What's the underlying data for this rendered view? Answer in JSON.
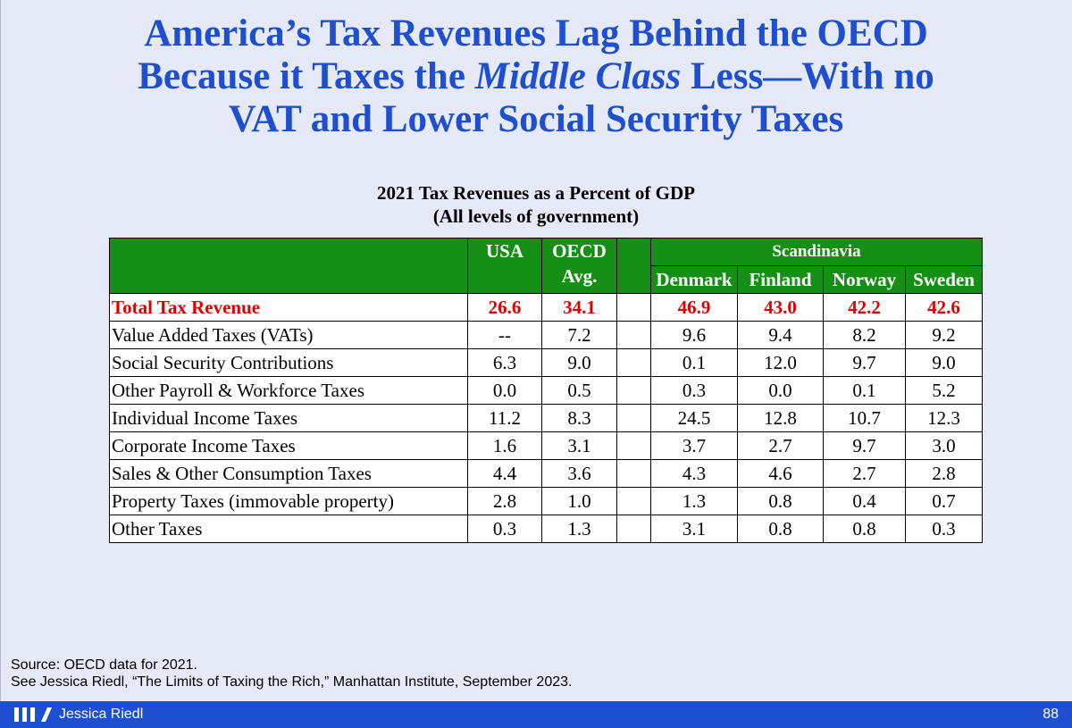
{
  "title": {
    "line1": "America’s Tax Revenues Lag Behind the OECD",
    "line2_pre": "Because it Taxes the ",
    "line2_em": "Middle Class",
    "line2_post": " Less—With no",
    "line3": "VAT and Lower Social Security Taxes"
  },
  "table": {
    "title_line1": "2021 Tax Revenues as a Percent of GDP",
    "title_line2": "(All levels of government)",
    "header": {
      "usa": "USA",
      "oecd_line1": "OECD",
      "oecd_line2": "Avg.",
      "group": "Scandinavia",
      "denmark": "Denmark",
      "finland": "Finland",
      "norway": "Norway",
      "sweden": "Sweden"
    },
    "rows": [
      {
        "label": "Total Tax Revenue",
        "usa": "26.6",
        "oecd": "34.1",
        "denmark": "46.9",
        "finland": "43.0",
        "norway": "42.2",
        "sweden": "42.6"
      },
      {
        "label": "Value Added Taxes (VATs)",
        "usa": "--",
        "oecd": "7.2",
        "denmark": "9.6",
        "finland": "9.4",
        "norway": "8.2",
        "sweden": "9.2"
      },
      {
        "label": "Social Security Contributions",
        "usa": "6.3",
        "oecd": "9.0",
        "denmark": "0.1",
        "finland": "12.0",
        "norway": "9.7",
        "sweden": "9.0"
      },
      {
        "label": "Other Payroll & Workforce Taxes",
        "usa": "0.0",
        "oecd": "0.5",
        "denmark": "0.3",
        "finland": "0.0",
        "norway": "0.1",
        "sweden": "5.2"
      },
      {
        "label": "Individual Income Taxes",
        "usa": "11.2",
        "oecd": "8.3",
        "denmark": "24.5",
        "finland": "12.8",
        "norway": "10.7",
        "sweden": "12.3"
      },
      {
        "label": "Corporate Income Taxes",
        "usa": "1.6",
        "oecd": "3.1",
        "denmark": "3.7",
        "finland": "2.7",
        "norway": "9.7",
        "sweden": "3.0"
      },
      {
        "label": "Sales & Other Consumption Taxes",
        "usa": "4.4",
        "oecd": "3.6",
        "denmark": "4.3",
        "finland": "4.6",
        "norway": "2.7",
        "sweden": "2.8"
      },
      {
        "label": "Property Taxes (immovable property)",
        "usa": "2.8",
        "oecd": "1.0",
        "denmark": "1.3",
        "finland": "0.8",
        "norway": "0.4",
        "sweden": "0.7"
      },
      {
        "label": "Other Taxes",
        "usa": "0.3",
        "oecd": "1.3",
        "denmark": "3.1",
        "finland": "0.8",
        "norway": "0.8",
        "sweden": "0.3"
      }
    ]
  },
  "source": {
    "line1": "Source: OECD data for 2021.",
    "line2": "See Jessica Riedl, “The Limits of Taxing the Rich,” Manhattan Institute, September 2023."
  },
  "footer": {
    "author": "Jessica Riedl",
    "page_number": "88"
  },
  "colors": {
    "title": "#1f4fd1",
    "header_bg": "#168f16",
    "total_row": "#e00000",
    "footer_bg": "#1f4fd1",
    "background": "#e6e9f7"
  }
}
